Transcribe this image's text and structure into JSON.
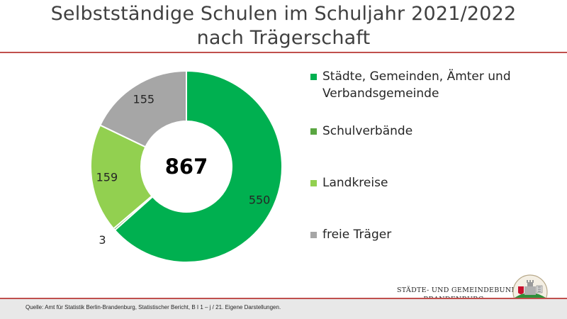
{
  "title": {
    "line1": "Selbstständige Schulen im Schuljahr 2021/2022",
    "line2": "nach Trägerschaft"
  },
  "chart_data": {
    "type": "pie",
    "donut": true,
    "total": 867,
    "categories": [
      "Städte, Gemeinden, Ämter und Verbandsgemeinde",
      "Schulverbände",
      "Landkreise",
      "freie Träger"
    ],
    "values": [
      550,
      3,
      159,
      155
    ],
    "colors": [
      "#00b050",
      "#5aa641",
      "#92d050",
      "#a6a6a6"
    ],
    "legend_position": "right"
  },
  "legend": {
    "items": [
      {
        "label": "Städte, Gemeinden, Ämter und Verbandsgemeinde",
        "color": "#00b050"
      },
      {
        "label": "Schulverbände",
        "color": "#5aa641"
      },
      {
        "label": "Landkreise",
        "color": "#92d050"
      },
      {
        "label": "freie Träger",
        "color": "#a6a6a6"
      }
    ]
  },
  "footer": {
    "source": "Quelle: Amt für Statistik Berlin-Brandenburg, Statistischer Bericht, B I 1 – j / 21. Eigene Darstellungen.",
    "org_line1": "STÄDTE- UND GEMEINDEBUND",
    "org_line2": "BRANDENBURG"
  },
  "colors": {
    "accent_rule": "#c0504d",
    "footer_bg": "#e8e8e8",
    "title_text": "#404040"
  },
  "icons": {
    "logo": "coat-of-arms-logo"
  }
}
